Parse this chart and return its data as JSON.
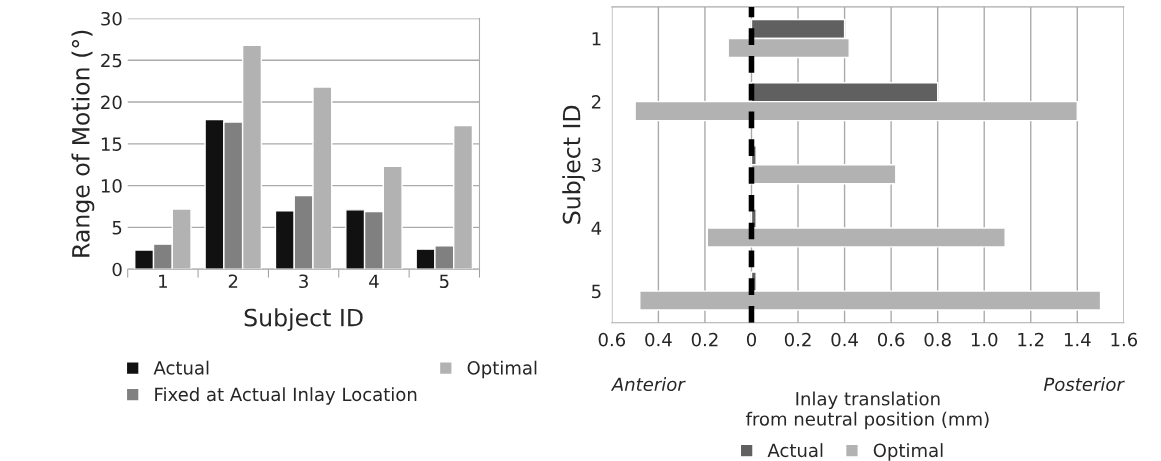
{
  "chart_data": [
    {
      "type": "bar",
      "xlabel": "Subject ID",
      "ylabel": "Range of Motion (°)",
      "categories": [
        "1",
        "2",
        "3",
        "4",
        "5"
      ],
      "series": [
        {
          "name": "Actual",
          "color": "#111111",
          "values": [
            2.3,
            17.9,
            7.0,
            7.1,
            2.4
          ]
        },
        {
          "name": "Fixed at Actual Inlay Location",
          "color": "#808080",
          "values": [
            3.0,
            17.6,
            8.8,
            6.9,
            2.8
          ]
        },
        {
          "name": "Optimal",
          "color": "#b2b2b2",
          "values": [
            7.2,
            26.8,
            21.8,
            12.3,
            17.2
          ]
        }
      ],
      "ylim": [
        0,
        30
      ],
      "yticks": [
        0,
        5,
        10,
        15,
        20,
        25,
        30
      ],
      "grid": "y",
      "legend": "bottom"
    },
    {
      "type": "bar",
      "orientation": "horizontal",
      "xlabel": "Inlay translation\nfrom neutral position (mm)",
      "ylabel": "Subject ID",
      "categories": [
        "1",
        "2",
        "3",
        "4",
        "5"
      ],
      "series": [
        {
          "name": "Actual",
          "color": "#606060",
          "values": [
            0.4,
            0.8,
            0.02,
            0.02,
            0.02
          ]
        },
        {
          "name": "Optimal",
          "color": "#b2b2b2",
          "base": [
            -0.1,
            -0.5,
            0,
            -0.19,
            -0.48
          ],
          "values": [
            0.52,
            1.9,
            0.62,
            1.28,
            1.98
          ]
        }
      ],
      "xlim": [
        -0.6,
        1.6
      ],
      "xticks": [
        {
          "value": -0.6,
          "label": "0.6"
        },
        {
          "value": -0.4,
          "label": "0.4"
        },
        {
          "value": -0.2,
          "label": "0.2"
        },
        0,
        0.2,
        0.4,
        0.6,
        0.8,
        {
          "value": 1.0,
          "label": "1.0"
        },
        1.2,
        1.4,
        1.6
      ],
      "grid": "x",
      "legend": "bottom",
      "ref_lines": [
        {
          "axis": "x",
          "value": 0,
          "color": "#000000",
          "line_style": "dashed"
        }
      ],
      "annotations": [
        "Anterior",
        "Posterior"
      ]
    }
  ]
}
